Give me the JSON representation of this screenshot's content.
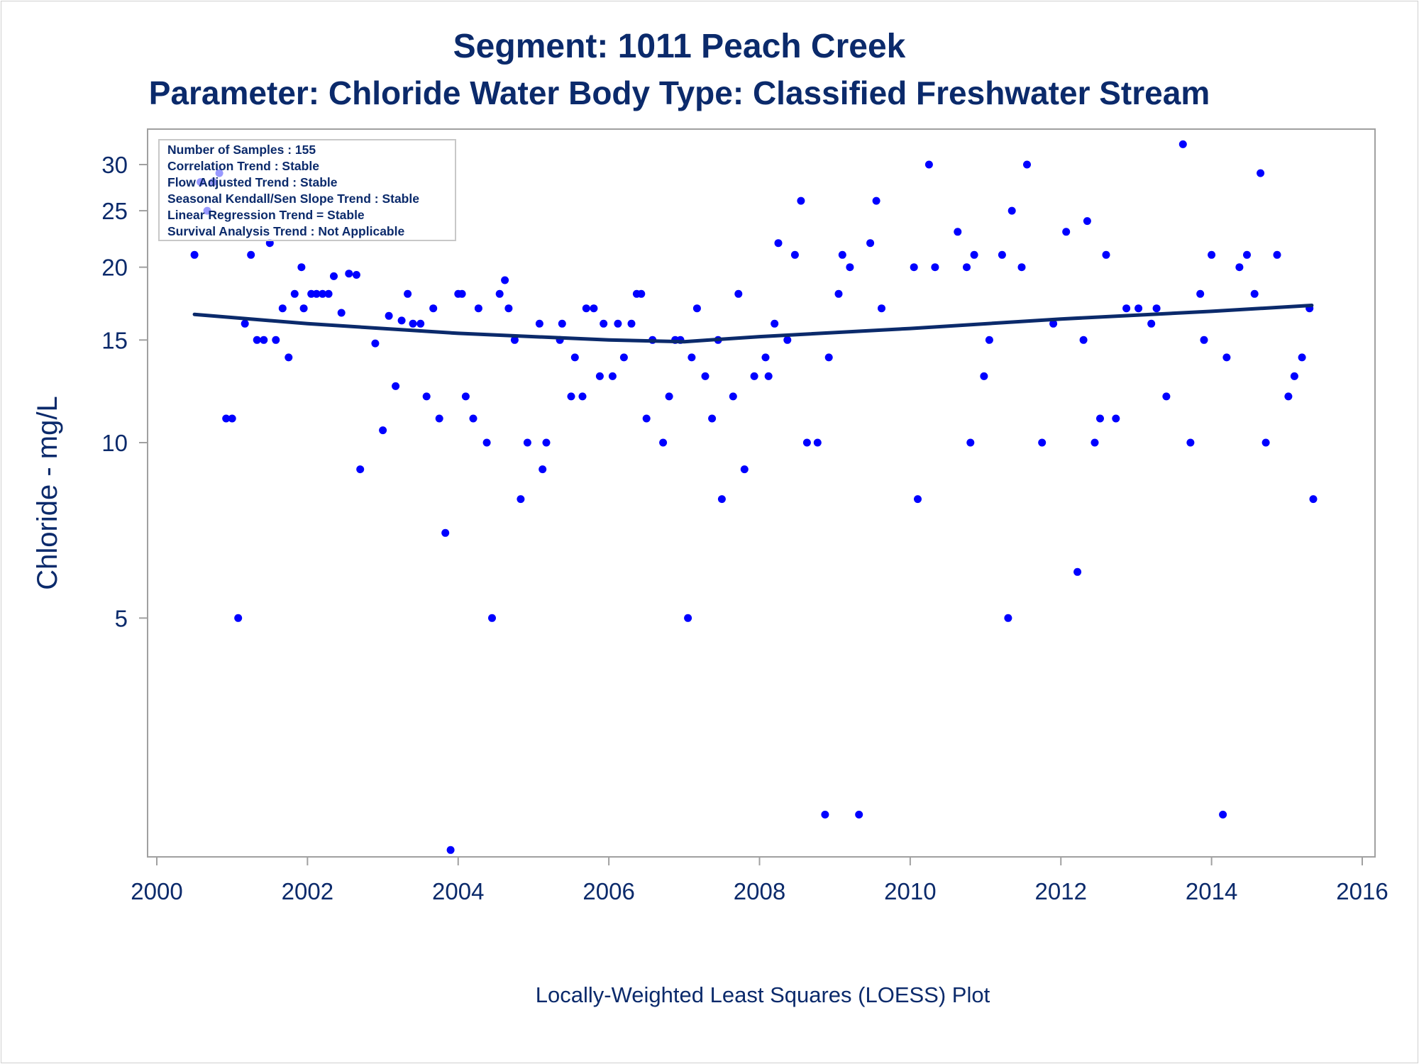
{
  "title": "Segment: 1011  Peach Creek",
  "subtitle": "Parameter: Chloride   Water Body Type: Classified Freshwater Stream",
  "stats_box": [
    "Number of Samples : 155",
    "Correlation Trend : Stable",
    "Flow Adjusted Trend : Stable",
    "Seasonal Kendall/Sen Slope Trend : Stable",
    "Linear Regression Trend = Stable",
    "Survival Analysis Trend : Not Applicable"
  ],
  "colors": {
    "text": "#0b2a6b",
    "points": "#0000ff",
    "fit_line": "#0b2a6b",
    "frame": "#a0a0a0"
  },
  "chart_data": {
    "type": "scatter",
    "title": "Segment: 1011  Peach Creek",
    "subtitle": "Parameter: Chloride   Water Body Type: Classified Freshwater Stream",
    "xlabel": "Locally-Weighted Least Squares (LOESS) Plot",
    "ylabel": "Chloride - mg/L",
    "x_scale": "linear",
    "y_scale": "log",
    "xlim": [
      2000,
      2016
    ],
    "ylim": [
      1.9,
      34.5
    ],
    "x_ticks": [
      2000,
      2002,
      2004,
      2006,
      2008,
      2010,
      2012,
      2014,
      2016
    ],
    "y_ticks": [
      5,
      10,
      15,
      20,
      25,
      30
    ],
    "grid": false,
    "series": [
      {
        "type": "scatter",
        "points": [
          [
            2000.5,
            21
          ],
          [
            2000.58,
            28
          ],
          [
            2000.67,
            25
          ],
          [
            2000.75,
            28
          ],
          [
            2000.83,
            29
          ],
          [
            2000.92,
            11
          ],
          [
            2001.0,
            11
          ],
          [
            2001.08,
            5
          ],
          [
            2001.17,
            16
          ],
          [
            2001.25,
            21
          ],
          [
            2001.33,
            15
          ],
          [
            2001.42,
            15
          ],
          [
            2001.5,
            22
          ],
          [
            2001.58,
            15
          ],
          [
            2001.67,
            17
          ],
          [
            2001.75,
            14
          ],
          [
            2001.83,
            18
          ],
          [
            2001.92,
            20
          ],
          [
            2001.95,
            17
          ],
          [
            2002.05,
            18
          ],
          [
            2002.12,
            18
          ],
          [
            2002.2,
            18
          ],
          [
            2002.28,
            18
          ],
          [
            2002.35,
            19.3
          ],
          [
            2002.45,
            16.7
          ],
          [
            2002.55,
            19.5
          ],
          [
            2002.65,
            19.4
          ],
          [
            2002.7,
            9
          ],
          [
            2002.9,
            14.8
          ],
          [
            2003.0,
            10.5
          ],
          [
            2003.08,
            16.5
          ],
          [
            2003.17,
            12.5
          ],
          [
            2003.25,
            16.2
          ],
          [
            2003.33,
            18
          ],
          [
            2003.4,
            16
          ],
          [
            2003.5,
            16
          ],
          [
            2003.58,
            12
          ],
          [
            2003.67,
            17
          ],
          [
            2003.75,
            11
          ],
          [
            2003.83,
            7
          ],
          [
            2003.9,
            2
          ],
          [
            2004.0,
            18
          ],
          [
            2004.05,
            18
          ],
          [
            2004.1,
            12
          ],
          [
            2004.2,
            11
          ],
          [
            2004.27,
            17
          ],
          [
            2004.38,
            10
          ],
          [
            2004.45,
            5
          ],
          [
            2004.55,
            18
          ],
          [
            2004.62,
            19
          ],
          [
            2004.67,
            17
          ],
          [
            2004.75,
            15
          ],
          [
            2004.83,
            8
          ],
          [
            2004.92,
            10
          ],
          [
            2005.08,
            16
          ],
          [
            2005.12,
            9
          ],
          [
            2005.17,
            10
          ],
          [
            2005.35,
            15
          ],
          [
            2005.38,
            16
          ],
          [
            2005.5,
            12
          ],
          [
            2005.55,
            14
          ],
          [
            2005.65,
            12
          ],
          [
            2005.7,
            17
          ],
          [
            2005.8,
            17
          ],
          [
            2005.88,
            13
          ],
          [
            2005.93,
            16
          ],
          [
            2006.05,
            13
          ],
          [
            2006.12,
            16
          ],
          [
            2006.2,
            14
          ],
          [
            2006.3,
            16
          ],
          [
            2006.37,
            18
          ],
          [
            2006.43,
            18
          ],
          [
            2006.5,
            11
          ],
          [
            2006.58,
            15
          ],
          [
            2006.72,
            10
          ],
          [
            2006.8,
            12
          ],
          [
            2006.88,
            15
          ],
          [
            2006.95,
            15
          ],
          [
            2007.05,
            5
          ],
          [
            2007.1,
            14
          ],
          [
            2007.17,
            17
          ],
          [
            2007.28,
            13
          ],
          [
            2007.37,
            11
          ],
          [
            2007.45,
            15
          ],
          [
            2007.5,
            8
          ],
          [
            2007.65,
            12
          ],
          [
            2007.72,
            18
          ],
          [
            2007.8,
            9
          ],
          [
            2007.93,
            13
          ],
          [
            2008.08,
            14
          ],
          [
            2008.12,
            13
          ],
          [
            2008.2,
            16
          ],
          [
            2008.25,
            22
          ],
          [
            2008.37,
            15
          ],
          [
            2008.47,
            21
          ],
          [
            2008.55,
            26
          ],
          [
            2008.63,
            10
          ],
          [
            2008.77,
            10
          ],
          [
            2008.87,
            2.3
          ],
          [
            2008.92,
            14
          ],
          [
            2009.05,
            18
          ],
          [
            2009.1,
            21
          ],
          [
            2009.2,
            20
          ],
          [
            2009.32,
            2.3
          ],
          [
            2009.47,
            22
          ],
          [
            2009.55,
            26
          ],
          [
            2009.62,
            17
          ],
          [
            2010.05,
            20
          ],
          [
            2010.1,
            8
          ],
          [
            2010.25,
            30
          ],
          [
            2010.33,
            20
          ],
          [
            2010.63,
            23
          ],
          [
            2010.75,
            20
          ],
          [
            2010.8,
            10
          ],
          [
            2010.85,
            21
          ],
          [
            2010.98,
            13
          ],
          [
            2011.05,
            15
          ],
          [
            2011.22,
            21
          ],
          [
            2011.3,
            5
          ],
          [
            2011.35,
            25
          ],
          [
            2011.48,
            20
          ],
          [
            2011.55,
            30
          ],
          [
            2011.75,
            10
          ],
          [
            2011.9,
            16
          ],
          [
            2012.07,
            23
          ],
          [
            2012.22,
            6
          ],
          [
            2012.3,
            15
          ],
          [
            2012.35,
            24
          ],
          [
            2012.45,
            10
          ],
          [
            2012.52,
            11
          ],
          [
            2012.6,
            21
          ],
          [
            2012.73,
            11
          ],
          [
            2012.87,
            17
          ],
          [
            2013.03,
            17
          ],
          [
            2013.2,
            16
          ],
          [
            2013.27,
            17
          ],
          [
            2013.4,
            12
          ],
          [
            2013.62,
            32.5
          ],
          [
            2013.72,
            10
          ],
          [
            2013.85,
            18
          ],
          [
            2013.9,
            15
          ],
          [
            2014.0,
            21
          ],
          [
            2014.15,
            2.3
          ],
          [
            2014.2,
            14
          ],
          [
            2014.37,
            20
          ],
          [
            2014.47,
            21
          ],
          [
            2014.57,
            18
          ],
          [
            2014.65,
            29
          ],
          [
            2014.72,
            10
          ],
          [
            2014.87,
            21
          ],
          [
            2015.02,
            12
          ],
          [
            2015.1,
            13
          ],
          [
            2015.2,
            14
          ],
          [
            2015.3,
            17
          ],
          [
            2015.35,
            8
          ]
        ]
      },
      {
        "type": "line",
        "points": [
          [
            2000.5,
            16.6
          ],
          [
            2002,
            16.0
          ],
          [
            2004,
            15.4
          ],
          [
            2006,
            15.0
          ],
          [
            2007,
            14.9
          ],
          [
            2008,
            15.2
          ],
          [
            2010,
            15.7
          ],
          [
            2012,
            16.3
          ],
          [
            2014,
            16.8
          ],
          [
            2015.33,
            17.2
          ]
        ]
      }
    ]
  }
}
